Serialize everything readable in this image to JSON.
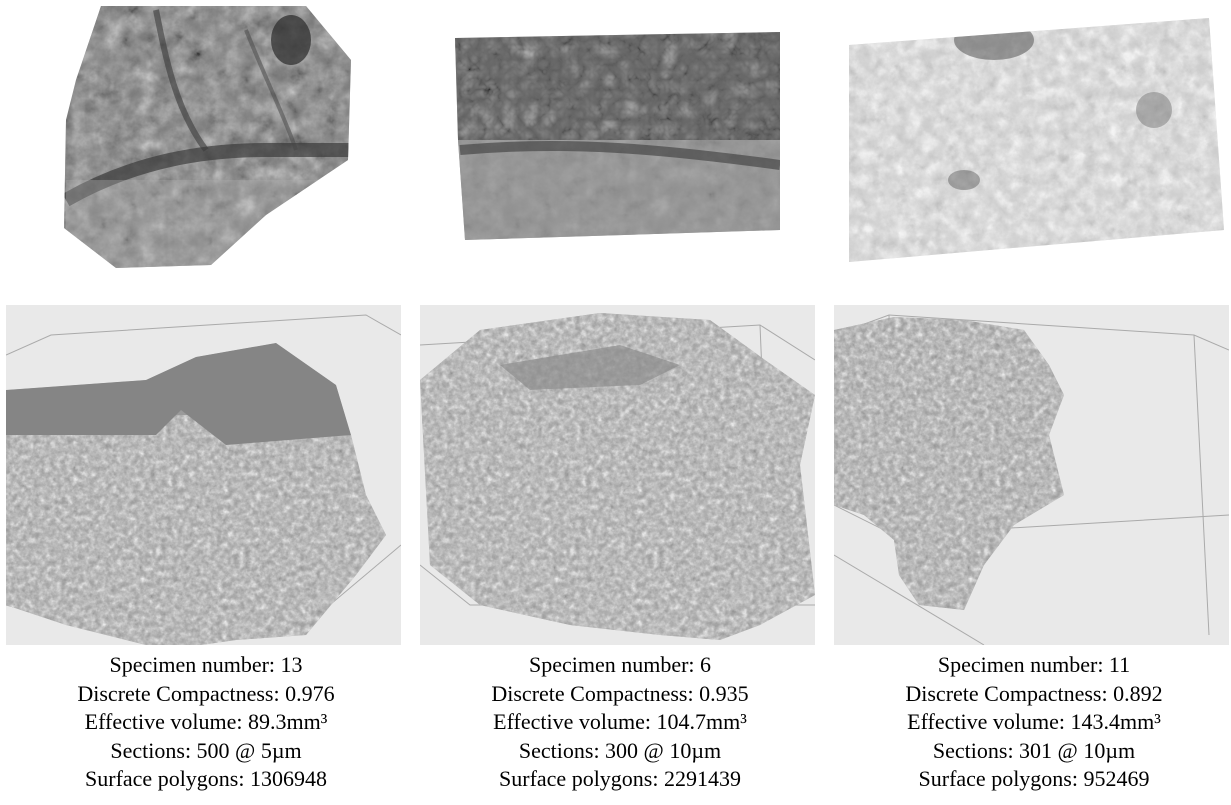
{
  "specimens": [
    {
      "specimen_number": "Specimen number: 13",
      "discrete_compactness": "Discrete Compactness: 0.976",
      "effective_volume": "Effective volume: 89.3mm³",
      "sections": "Sections: 500 @ 5µm",
      "surface_polygons": "Surface polygons: 1306948"
    },
    {
      "specimen_number": "Specimen number: 6",
      "discrete_compactness": "Discrete Compactness: 0.935",
      "effective_volume": "Effective volume: 104.7mm³",
      "sections": "Sections: 300 @ 10µm",
      "surface_polygons": "Surface polygons: 2291439"
    },
    {
      "specimen_number": "Specimen number: 11",
      "discrete_compactness": "Discrete Compactness: 0.892",
      "effective_volume": "Effective volume: 143.4mm³",
      "sections": "Sections: 301 @ 10µm",
      "surface_polygons": "Surface polygons: 952469"
    }
  ],
  "colors": {
    "render_background": "#e9e9e9",
    "surface_gray": "#8a8a8a",
    "caption_text": "#000000"
  }
}
